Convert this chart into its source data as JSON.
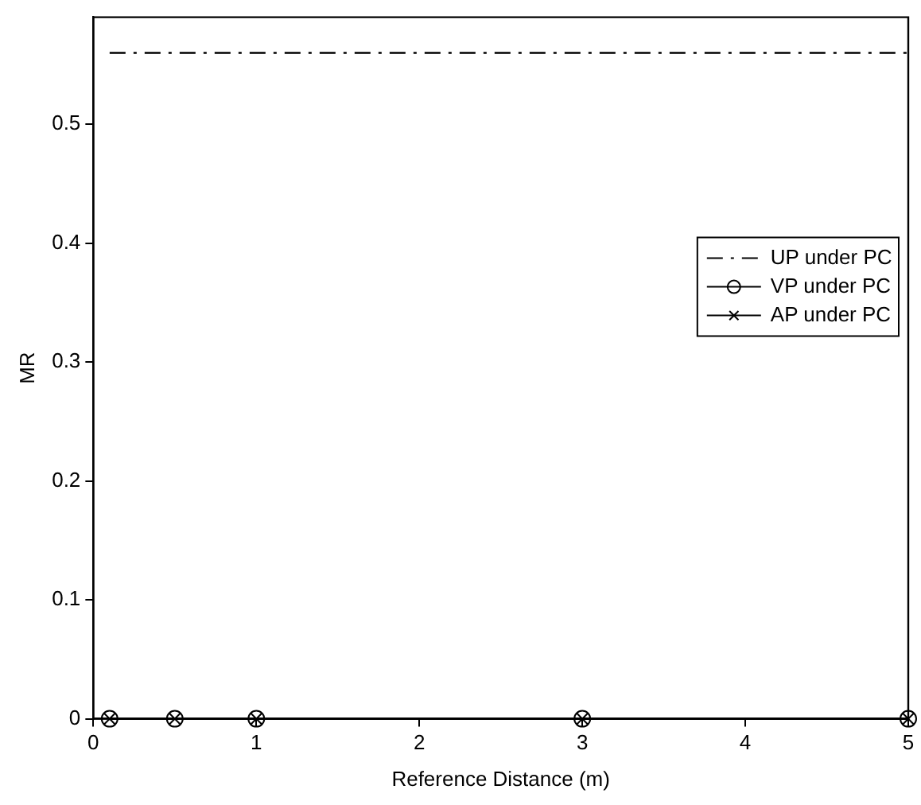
{
  "chart_data": {
    "type": "line",
    "xlabel": "Reference Distance (m)",
    "ylabel": "MR",
    "xlim": [
      0,
      5
    ],
    "xticks": [
      0,
      1,
      2,
      3,
      4,
      5
    ],
    "ylim": [
      0,
      0.59
    ],
    "yticks": [
      0,
      0.1,
      0.2,
      0.3,
      0.4,
      0.5
    ],
    "grid": false,
    "legend": "right",
    "series": [
      {
        "name": "UP under PC",
        "color": "#000000",
        "x": [
          0.1,
          0.5,
          1,
          3,
          5
        ],
        "values": [
          0.56,
          0.56,
          0.56,
          0.56,
          0.56
        ],
        "line_style": "dashdot",
        "marker": "none"
      },
      {
        "name": "VP under PC",
        "color": "#000000",
        "x": [
          0.1,
          0.5,
          1,
          3,
          5
        ],
        "values": [
          0,
          0,
          0,
          0,
          0
        ],
        "line_style": "solid",
        "marker": "circle"
      },
      {
        "name": "AP under PC",
        "color": "#000000",
        "x": [
          0.1,
          0.5,
          1,
          3,
          5
        ],
        "values": [
          0,
          0,
          0,
          0,
          0
        ],
        "line_style": "solid",
        "marker": "cross"
      }
    ]
  }
}
